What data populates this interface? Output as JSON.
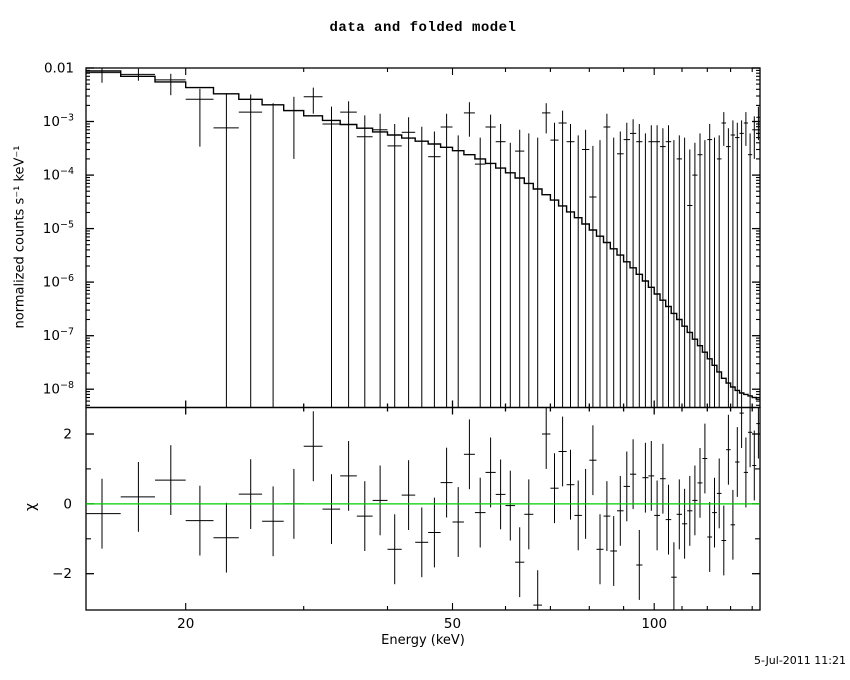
{
  "window": {
    "background": "#ffffff",
    "foreground": "#000000"
  },
  "footer": {
    "timestamp": "5-Jul-2011  11:21"
  },
  "chart_data": {
    "type": "line",
    "subtype": "X-ray spectrum: stepped folded model + data error bars, with chi residual panel",
    "title": "data and folded model",
    "xlabel": "Energy (keV)",
    "xscale": "log",
    "xlim": [
      14.2,
      143.8
    ],
    "xticks_major": [
      20,
      50,
      100
    ],
    "xticks_minor": [
      30,
      40,
      60,
      70,
      80,
      90,
      110,
      120,
      130,
      140
    ],
    "bin_halfwidth_keV": 1,
    "energies_keV": [
      15,
      17,
      19,
      21,
      23,
      25,
      27,
      29,
      31,
      33,
      35,
      37,
      39,
      41,
      43,
      45,
      47,
      49,
      51,
      53,
      55,
      57,
      59,
      61,
      63,
      65,
      67,
      69,
      71,
      73,
      75,
      77,
      79,
      81,
      83,
      85,
      87,
      89,
      91,
      93,
      95,
      97,
      99,
      101,
      103,
      105,
      107,
      109,
      111,
      113,
      115,
      117,
      119,
      121,
      123,
      125,
      127,
      129,
      131,
      133,
      135,
      137,
      139,
      141,
      143
    ],
    "top_panel": {
      "ylabel": "normalized counts s⁻¹ keV⁻¹",
      "yscale": "log",
      "ylim": [
        4.55e-09,
        0.01
      ],
      "ytick_top_label": "0.01",
      "ytick_exponents": [
        -3,
        -4,
        -5,
        -6,
        -7,
        -8
      ],
      "model": [
        0.0088,
        0.007,
        0.0055,
        0.0043,
        0.0033,
        0.0026,
        0.00205,
        0.0016,
        0.00128,
        0.00105,
        0.00088,
        0.00075,
        0.00064,
        0.00056,
        0.00049,
        0.00043,
        0.00038,
        0.00033,
        0.000285,
        0.00024,
        0.0002,
        0.000165,
        0.000135,
        0.00011,
        8.8e-05,
        7e-05,
        5.5e-05,
        4.3e-05,
        3.4e-05,
        2.65e-05,
        2.05e-05,
        1.6e-05,
        1.22e-05,
        9.4e-06,
        7.2e-06,
        5.5e-06,
        4.2e-06,
        3.2e-06,
        2.4e-06,
        1.85e-06,
        1.4e-06,
        1.05e-06,
        8e-07,
        6e-07,
        4.6e-07,
        3.5e-07,
        2.6e-07,
        2e-07,
        1.5e-07,
        1.15e-07,
        8.6e-08,
        6.5e-08,
        4.9e-08,
        3.7e-08,
        2.8e-08,
        2.1e-08,
        1.6e-08,
        1.3e-08,
        1.1e-08,
        9.5e-09,
        8.5e-09,
        8e-09,
        7.5e-09,
        7e-09,
        6.5e-09
      ],
      "data": [
        0.0082,
        0.0076,
        0.006,
        0.0026,
        0.00076,
        0.0015,
        null,
        0.0016,
        0.0029,
        0.0009,
        0.0015,
        0.00052,
        0.0007,
        0.00035,
        0.00063,
        null,
        0.00022,
        0.00079,
        null,
        0.00145,
        0.00016,
        0.00079,
        0.00042,
        null,
        0.00028,
        null,
        null,
        0.00145,
        0.00045,
        0.00094,
        0.00042,
        null,
        0.0003,
        3.9e-05,
        null,
        0.00079,
        null,
        0.00025,
        0.00046,
        0.0006,
        0.00042,
        null,
        0.00042,
        0.00042,
        0.00034,
        0.00042,
        null,
        0.0002,
        null,
        2.7e-05,
        0.0001,
        0.00024,
        null,
        0.00046,
        null,
        0.0002,
        0.00094,
        0.00034,
        0.00056,
        0.0005,
        0.0006,
        0.00094,
        0.00024,
        0.0007,
        0.0012
      ],
      "err_hi": [
        0.01,
        0.0097,
        0.0078,
        0.0041,
        0.0034,
        0.0032,
        0.0022,
        0.0029,
        0.0043,
        0.0019,
        0.0024,
        0.0013,
        0.0014,
        0.0009,
        0.0012,
        0.0008,
        0.00065,
        0.0014,
        0.00055,
        0.0023,
        0.0005,
        0.00135,
        0.0009,
        0.0004,
        0.0007,
        0.0006,
        0.0005,
        0.0022,
        0.00095,
        0.0016,
        0.0009,
        0.00055,
        0.0007,
        0.00035,
        0.00045,
        0.0014,
        0.0005,
        0.00065,
        0.00095,
        0.0011,
        0.0009,
        0.0006,
        0.00085,
        0.00085,
        0.00075,
        0.00085,
        0.00045,
        0.00055,
        0.0005,
        0.0003,
        0.0004,
        0.0006,
        0.00045,
        0.0009,
        0.0005,
        0.00055,
        0.0015,
        0.00075,
        0.00105,
        0.00095,
        0.00105,
        0.0015,
        0.0006,
        0.00125,
        0.0019
      ],
      "err_lo": [
        0.0053,
        0.0058,
        0.0031,
        0.00034,
        0,
        0,
        0,
        0.0002,
        0.0014,
        0,
        0,
        0,
        0,
        0,
        0,
        0,
        0,
        0,
        0,
        0.00052,
        0,
        0,
        0,
        0,
        0,
        0,
        0,
        0.0006,
        0,
        0,
        0,
        0,
        0,
        0,
        0,
        0,
        0,
        0,
        0,
        0,
        0,
        0,
        0,
        0,
        0,
        0,
        0,
        0,
        0,
        0,
        0,
        0,
        0,
        0,
        0,
        0,
        0.00035,
        0,
        0,
        0,
        0,
        0.00035,
        0,
        0.0002,
        0.00045
      ],
      "err_lo_note": "0 means the lower error bar extends below the plotted range (drawn to panel bottom); null data means only the error bar line is visible"
    },
    "bottom_panel": {
      "ylabel": "χ",
      "yscale": "linear",
      "ylim": [
        -3.04,
        2.76
      ],
      "yticks_major": [
        -2,
        0,
        2
      ],
      "yticks_minor": [
        -1,
        1
      ],
      "chi": [
        -0.28,
        0.2,
        0.68,
        -0.48,
        -0.97,
        0.28,
        -0.5,
        0.0,
        1.65,
        -0.15,
        0.8,
        -0.35,
        0.1,
        -1.3,
        0.25,
        -1.1,
        -0.82,
        0.61,
        -0.52,
        1.42,
        -0.25,
        0.9,
        0.27,
        -0.05,
        -1.67,
        -0.3,
        -2.9,
        2.0,
        0.45,
        1.5,
        0.55,
        -0.33,
        0.0,
        1.25,
        -1.3,
        -0.35,
        -1.35,
        -0.2,
        0.5,
        0.85,
        -1.75,
        0.75,
        0.8,
        -0.33,
        0.72,
        -0.45,
        -2.1,
        -0.3,
        -0.57,
        -0.2,
        0.1,
        0.6,
        1.3,
        -0.95,
        -0.25,
        0.3,
        -1.05,
        1.55,
        -0.6,
        1.2,
        2.6,
        0.9,
        2.05,
        1.1,
        2.3
      ],
      "chi_err": 1,
      "zero_line_color": "#00CF00"
    }
  }
}
